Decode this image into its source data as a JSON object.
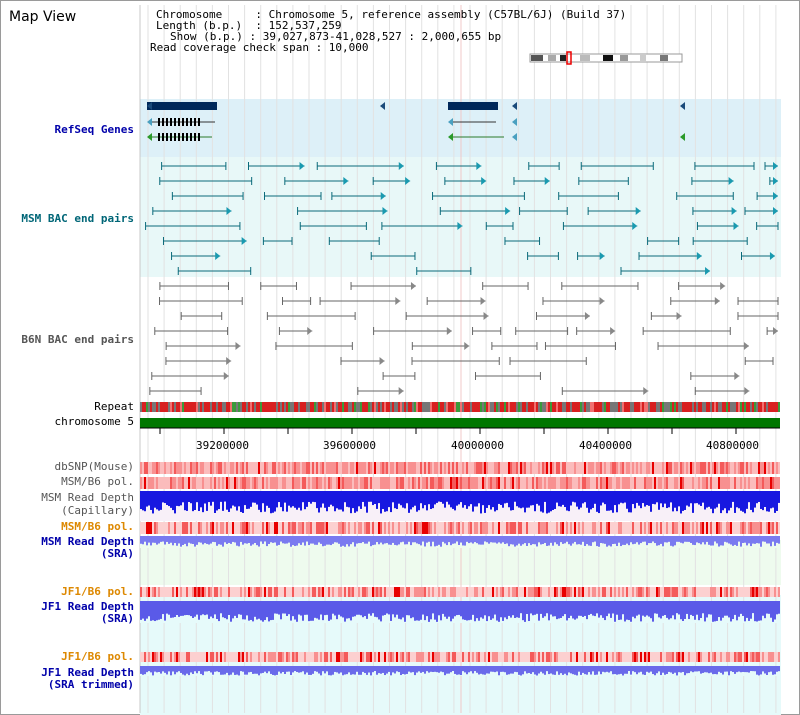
{
  "title": "Map View",
  "info": {
    "chromosome_key": "Chromosome",
    "chromosome_val": ": Chromosome 5, reference assembly (C57BL/6J) (Build 37)",
    "length_key": "Length (b.p.)",
    "length_val": ": 152,537,259",
    "show_key": "Show (b.p.)",
    "show_val": ": 39,027,873-41,028,527 : 2,000,655 bp",
    "coverage": "Read coverage check span : 10,000"
  },
  "tracks": {
    "refseq": "RefSeq Genes",
    "msm_bac": "MSM BAC end pairs",
    "b6n_bac": "B6N BAC end pairs",
    "repeat": "Repeat",
    "chromosome": "chromosome 5",
    "dbsnp": "dbSNP(Mouse)",
    "msm_b6_pol1": "MSM/B6 pol.",
    "msm_depth_cap_1": "MSM Read Depth",
    "msm_depth_cap_2": "(Capillary)",
    "msm_b6_pol2": "MSM/B6 pol.",
    "msm_depth_sra_1": "MSM Read Depth",
    "msm_depth_sra_2": "(SRA)",
    "jf1_b6_pol1": "JF1/B6 pol.",
    "jf1_depth_sra_1": "JF1 Read Depth",
    "jf1_depth_sra_2": "(SRA)",
    "jf1_b6_pol2": "JF1/B6 pol.",
    "jf1_depth_trim_1": "JF1 Read Depth",
    "jf1_depth_trim_2": "(SRA trimmed)"
  },
  "axis_ticks": [
    "39200000",
    "39600000",
    "40000000",
    "40400000",
    "40800000"
  ],
  "colors": {
    "refseq_label": "#0000aa",
    "msm_bac_label": "#006677",
    "b6n_bac_label": "#555555",
    "pol_orange": "#dd8800",
    "depth_blue": "#0000aa",
    "chrom_green": "#007700"
  }
}
